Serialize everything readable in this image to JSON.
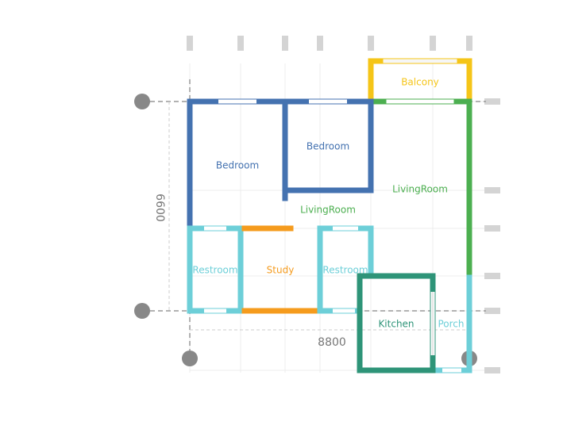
{
  "colors": {
    "bedroom": "#4472b0",
    "living": "#4caf50",
    "balcony": "#f5c518",
    "restroom": "#6dcfd8",
    "study": "#f59b1d",
    "kitchen": "#2e9478",
    "porch": "#6dcfd8",
    "grid": "#e8e8e8",
    "axis_marker": "#d4d4d4",
    "dimension": "#999999",
    "node": "#888888"
  },
  "rooms": {
    "bedroom_1": "Bedroom",
    "bedroom_2": "Bedroom",
    "living_room_1": "LivingRoom",
    "living_room_2": "LivingRoom",
    "balcony": "Balcony",
    "restroom_1": "Restroom",
    "study": "Study",
    "restroom_2": "Restroom",
    "kitchen": "Kitchen",
    "porch": "Porch"
  },
  "dimensions": {
    "vertical": "6600",
    "horizontal": "8800"
  }
}
